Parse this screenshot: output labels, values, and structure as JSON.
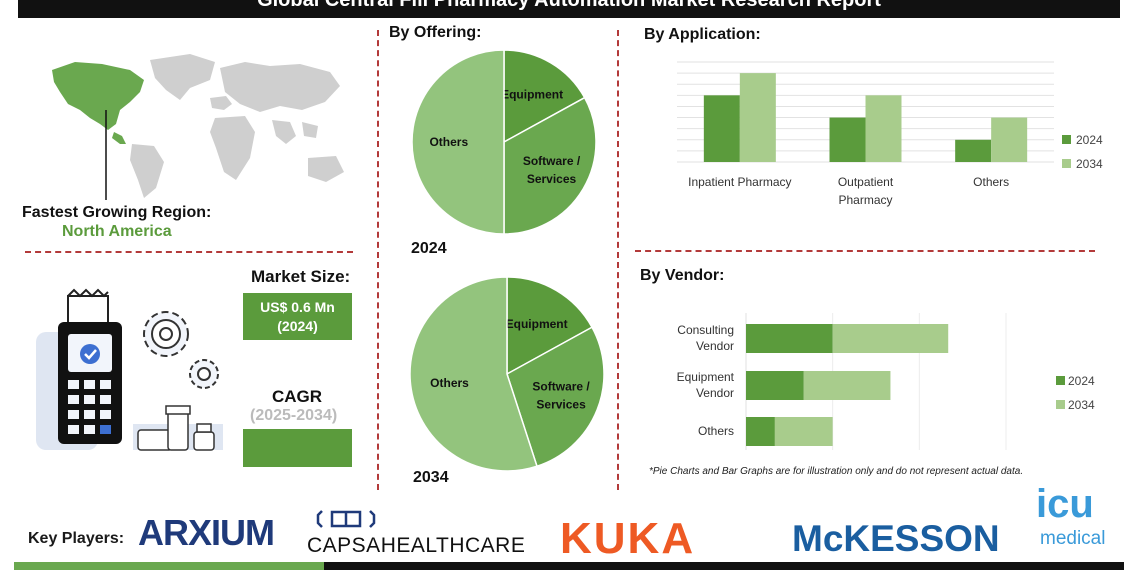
{
  "header": {
    "title": "Global Central Fill Pharmacy Automation Market Research Report"
  },
  "region": {
    "label": "Fastest Growing Region:",
    "value": "North America"
  },
  "market_size": {
    "label": "Market Size:",
    "value_line1": "US$ 0.6 Mn",
    "value_line2": "(2024)"
  },
  "cagr": {
    "label": "CAGR",
    "period": "(2025-2034)",
    "value": ""
  },
  "sections": {
    "offering": "By Offering:",
    "application": "By Application:",
    "vendor": "By Vendor:"
  },
  "colors": {
    "dark_green": "#5b9b3c",
    "light_green": "#a8cc8c",
    "mid_green": "#6aa84f",
    "pale_green": "#93c47d",
    "divider": "#b33a3a"
  },
  "chart_data": [
    {
      "type": "pie",
      "year_label": "2024",
      "slices": [
        {
          "label": "Equipment",
          "value": 17
        },
        {
          "label": "Software / Services",
          "value": 33
        },
        {
          "label": "Others",
          "value": 50
        }
      ]
    },
    {
      "type": "pie",
      "year_label": "2034",
      "slices": [
        {
          "label": "Equipment",
          "value": 17
        },
        {
          "label": "Software / Services",
          "value": 28
        },
        {
          "label": "Others",
          "value": 55
        }
      ]
    },
    {
      "type": "bar",
      "title": "By Application:",
      "categories": [
        "Inpatient Pharmacy",
        "Outpatient Pharmacy",
        "Others"
      ],
      "series": [
        {
          "name": "2024",
          "values": [
            3,
            2,
            1
          ]
        },
        {
          "name": "2034",
          "values": [
            4,
            3,
            2
          ]
        }
      ],
      "ylim": [
        0,
        4.5
      ],
      "grid": true,
      "legend": "right"
    },
    {
      "type": "bar",
      "orientation": "horizontal",
      "title": "By Vendor:",
      "categories": [
        "Consulting Vendor",
        "Equipment Vendor",
        "Others"
      ],
      "series": [
        {
          "name": "2024",
          "values": [
            3,
            2,
            1
          ]
        },
        {
          "name": "2034",
          "values": [
            4,
            3,
            2
          ]
        }
      ],
      "stacked": true,
      "xlim": [
        0,
        9
      ],
      "legend": "right"
    }
  ],
  "disclaimer": "*Pie Charts and Bar Graphs are for illustration only and do not represent actual data.",
  "key_players": {
    "label": "Key Players:",
    "arxium": "ARXIUM",
    "capsa": "CAPSAHEALTHCARE",
    "kuka": "KUKA",
    "mckesson": "McKESSON",
    "icu_top": "icu",
    "icu_bottom": "medical"
  }
}
